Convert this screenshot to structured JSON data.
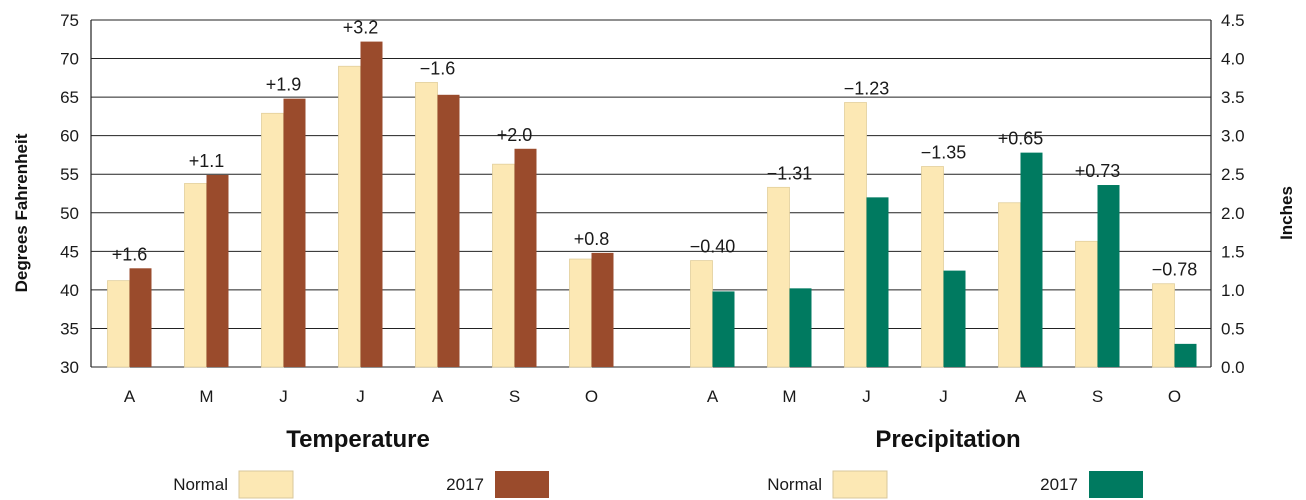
{
  "colors": {
    "normal": "#FCE8B4",
    "temp2017": "#9A4B2C",
    "precip2017": "#007A60",
    "grid": "#222222"
  },
  "chart_data": [
    {
      "type": "bar",
      "title": "Temperature",
      "ylabel": "Degrees Fahrenheit",
      "ylim": [
        30,
        75
      ],
      "yticks": [
        "30",
        "35",
        "40",
        "45",
        "50",
        "55",
        "60",
        "65",
        "70",
        "75"
      ],
      "categories": [
        "A",
        "M",
        "J",
        "J",
        "A",
        "S",
        "O"
      ],
      "series": [
        {
          "name": "Normal",
          "values": [
            41.2,
            53.8,
            62.9,
            69.0,
            66.9,
            56.3,
            44.0
          ]
        },
        {
          "name": "2017",
          "values": [
            42.8,
            54.9,
            64.8,
            72.2,
            65.3,
            58.3,
            44.8
          ]
        }
      ],
      "annotations": [
        "+1.6",
        "+1.1",
        "+1.9",
        "+3.2",
        "−1.6",
        "+2.0",
        "+0.8"
      ],
      "legend": {
        "normal_label": "Normal",
        "year_label": "2017",
        "placement": "bottom"
      }
    },
    {
      "type": "bar",
      "title": "Precipitation",
      "ylabel": "Inches",
      "ylim": [
        0.0,
        4.5
      ],
      "yticks": [
        "0.0",
        "0.5",
        "1.0",
        "1.5",
        "2.0",
        "2.5",
        "3.0",
        "3.5",
        "4.0",
        "4.5"
      ],
      "categories": [
        "A",
        "M",
        "J",
        "J",
        "A",
        "S",
        "O"
      ],
      "series": [
        {
          "name": "Normal",
          "values": [
            1.38,
            2.33,
            3.43,
            2.6,
            2.13,
            1.63,
            1.08
          ]
        },
        {
          "name": "2017",
          "values": [
            0.98,
            1.02,
            2.2,
            1.25,
            2.78,
            2.36,
            0.3
          ]
        }
      ],
      "annotations": [
        "−0.40",
        "−1.31",
        "−1.23",
        "−1.35",
        "+0.65",
        "+0.73",
        "−0.78"
      ],
      "legend": {
        "normal_label": "Normal",
        "year_label": "2017",
        "placement": "bottom"
      }
    }
  ]
}
